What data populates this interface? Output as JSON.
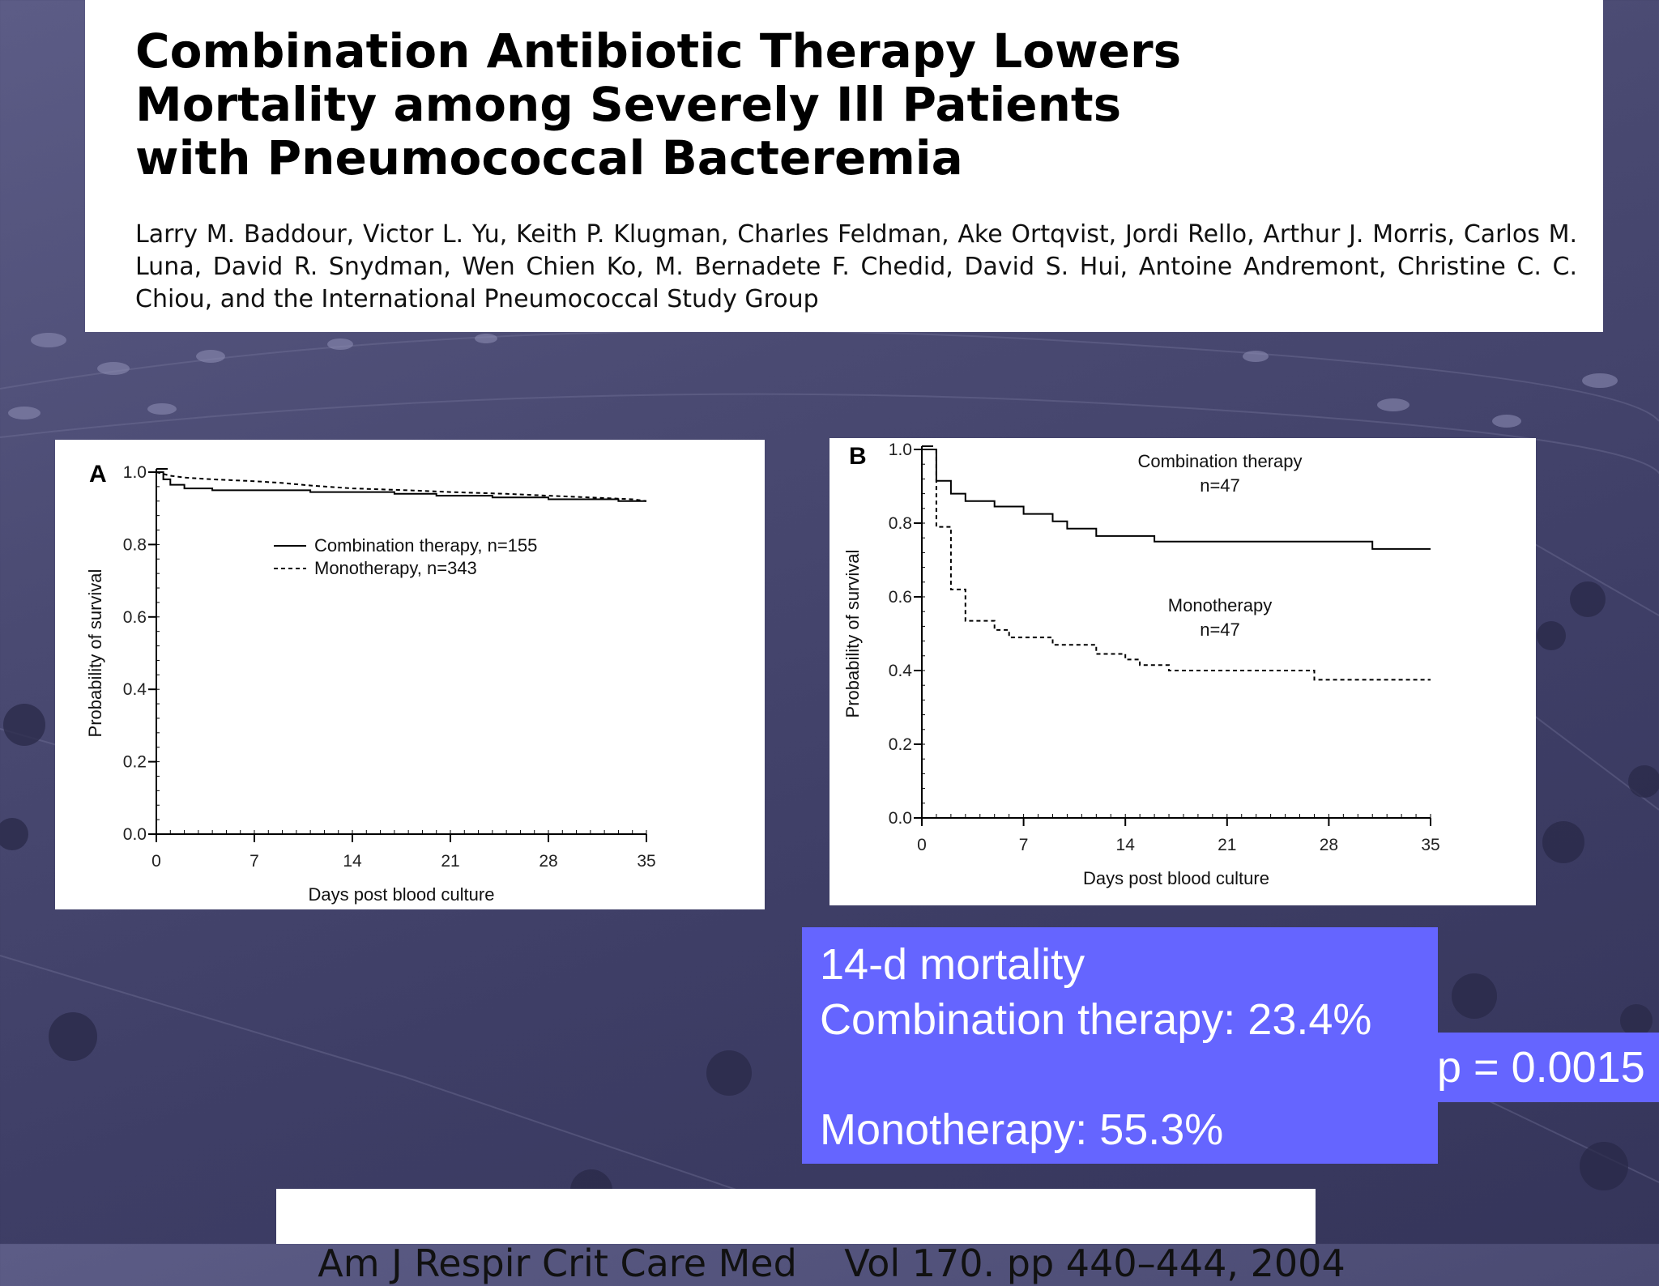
{
  "article": {
    "title": "Combination Antibiotic Therapy Lowers\nMortality among Severely Ill Patients\nwith Pneumococcal Bacteremia",
    "authors": "Larry M. Baddour, Victor L. Yu, Keith P. Klugman, Charles Feldman, Ake Ortqvist, Jordi Rello, Arthur J. Morris, Carlos M. Luna, David R. Snydman, Wen Chien Ko, M. Bernadete F. Chedid, David S. Hui, Antoine Andremont, Christine C. C. Chiou, and the International Pneumococcal Study Group"
  },
  "chart_data": [
    {
      "type": "line",
      "panel_label": "A",
      "xlabel": "Days post blood culture",
      "ylabel": "Probability of survival",
      "xlim": [
        0,
        35
      ],
      "ylim": [
        0,
        1.0
      ],
      "x_ticks": [
        "0",
        "7",
        "14",
        "21",
        "28",
        "35"
      ],
      "y_ticks": [
        "0.0",
        "0.2",
        "0.4",
        "0.6",
        "0.8",
        "1.0"
      ],
      "legend_position": "center",
      "series": [
        {
          "name": "Combination therapy,  n=155",
          "line_style": "solid",
          "points": [
            [
              0,
              1.0
            ],
            [
              0.5,
              1.0
            ],
            [
              0.5,
              0.98
            ],
            [
              1,
              0.98
            ],
            [
              1,
              0.965
            ],
            [
              2,
              0.965
            ],
            [
              2,
              0.955
            ],
            [
              4,
              0.955
            ],
            [
              4,
              0.95
            ],
            [
              11,
              0.95
            ],
            [
              11,
              0.945
            ],
            [
              17,
              0.945
            ],
            [
              17,
              0.94
            ],
            [
              20,
              0.94
            ],
            [
              20,
              0.935
            ],
            [
              24,
              0.935
            ],
            [
              24,
              0.93
            ],
            [
              28,
              0.93
            ],
            [
              28,
              0.925
            ],
            [
              33,
              0.925
            ],
            [
              33,
              0.92
            ],
            [
              35,
              0.92
            ]
          ]
        },
        {
          "name": "Monotherapy, n=343",
          "line_style": "dashed",
          "points": [
            [
              0,
              1.0
            ],
            [
              1,
              0.99
            ],
            [
              2,
              0.985
            ],
            [
              4,
              0.98
            ],
            [
              7,
              0.975
            ],
            [
              9,
              0.97
            ],
            [
              11,
              0.963
            ],
            [
              14,
              0.955
            ],
            [
              18,
              0.95
            ],
            [
              21,
              0.945
            ],
            [
              25,
              0.94
            ],
            [
              28,
              0.935
            ],
            [
              31,
              0.93
            ],
            [
              34,
              0.925
            ],
            [
              35,
              0.92
            ]
          ]
        }
      ]
    },
    {
      "type": "line",
      "panel_label": "B",
      "xlabel": "Days post blood culture",
      "ylabel": "Probability of survival",
      "xlim": [
        0,
        35
      ],
      "ylim": [
        0,
        1.0
      ],
      "x_ticks": [
        "0",
        "7",
        "14",
        "21",
        "28",
        "35"
      ],
      "y_ticks": [
        "0.0",
        "0.2",
        "0.4",
        "0.6",
        "0.8",
        "1.0"
      ],
      "legend_position": "inline",
      "series": [
        {
          "name": "Combination therapy",
          "n_label": "n=47",
          "line_style": "solid",
          "points": [
            [
              0,
              1.0
            ],
            [
              1,
              1.0
            ],
            [
              1,
              0.915
            ],
            [
              2,
              0.915
            ],
            [
              2,
              0.88
            ],
            [
              3,
              0.88
            ],
            [
              3,
              0.86
            ],
            [
              5,
              0.86
            ],
            [
              5,
              0.845
            ],
            [
              7,
              0.845
            ],
            [
              7,
              0.825
            ],
            [
              9,
              0.825
            ],
            [
              9,
              0.805
            ],
            [
              10,
              0.805
            ],
            [
              10,
              0.785
            ],
            [
              12,
              0.785
            ],
            [
              12,
              0.765
            ],
            [
              16,
              0.765
            ],
            [
              16,
              0.75
            ],
            [
              31,
              0.75
            ],
            [
              31,
              0.73
            ],
            [
              35,
              0.73
            ]
          ]
        },
        {
          "name": "Monotherapy",
          "n_label": "n=47",
          "line_style": "dashed",
          "points": [
            [
              0,
              1.0
            ],
            [
              1,
              1.0
            ],
            [
              1,
              0.79
            ],
            [
              2,
              0.79
            ],
            [
              2,
              0.62
            ],
            [
              3,
              0.62
            ],
            [
              3,
              0.535
            ],
            [
              5,
              0.535
            ],
            [
              5,
              0.51
            ],
            [
              6,
              0.51
            ],
            [
              6,
              0.49
            ],
            [
              9,
              0.49
            ],
            [
              9,
              0.47
            ],
            [
              12,
              0.47
            ],
            [
              12,
              0.445
            ],
            [
              14,
              0.445
            ],
            [
              14,
              0.43
            ],
            [
              15,
              0.43
            ],
            [
              15,
              0.415
            ],
            [
              17,
              0.415
            ],
            [
              17,
              0.4
            ],
            [
              27,
              0.4
            ],
            [
              27,
              0.375
            ],
            [
              35,
              0.375
            ]
          ]
        }
      ]
    }
  ],
  "stats": {
    "line1": "14-d mortality",
    "line2": "Combination therapy: 23.4%",
    "line3": "Monotherapy: 55.3%",
    "p_value": "p = 0.0015"
  },
  "citation": "Am J Respir Crit Care Med    Vol 170. pp 440–444, 2004"
}
